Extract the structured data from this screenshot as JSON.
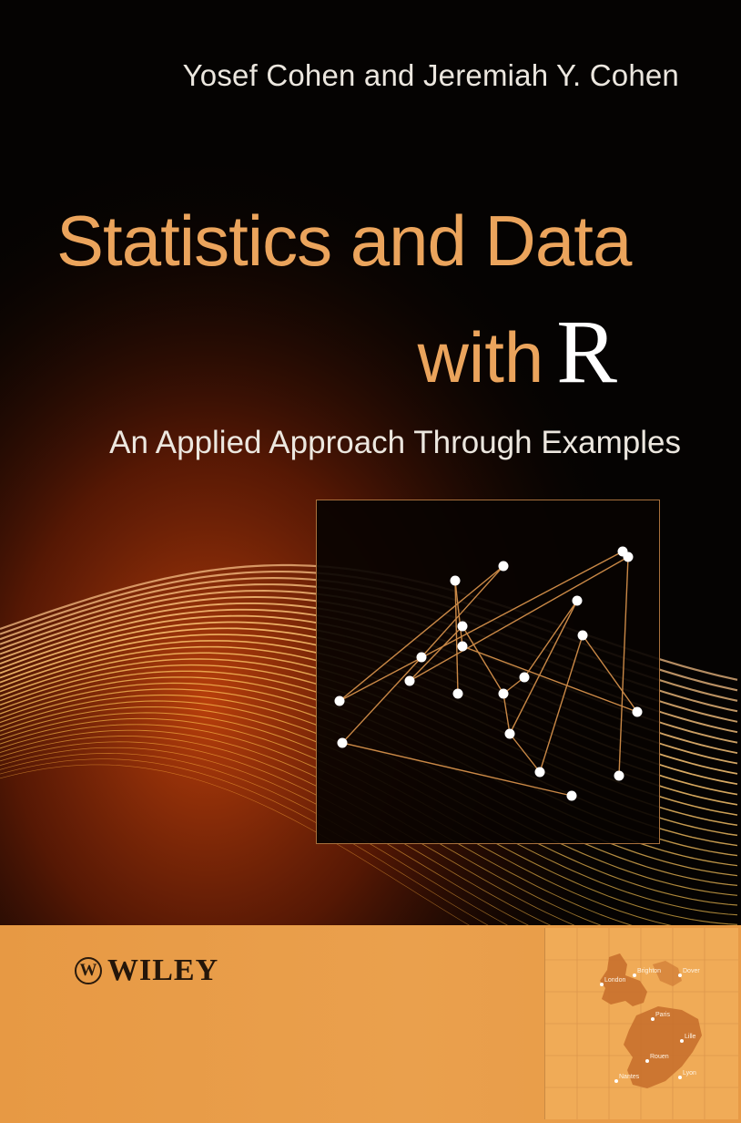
{
  "cover": {
    "authors": "Yosef Cohen and Jeremiah Y. Cohen",
    "title_line1": "Statistics and Data",
    "title_line2_word": "with",
    "title_line2_letter": "R",
    "subtitle": "An Applied Approach Through Examples",
    "publisher_mark": "W",
    "publisher_name": "WILEY"
  },
  "colors": {
    "background": "#050302",
    "title": "#eba45c",
    "title_accent": "#ffffff",
    "wave_orange": "#f08a2c",
    "footer": "#e99c48",
    "plot_frame": "#a8703c"
  },
  "map_labels": [
    "London",
    "Brighton",
    "Dover",
    "Paris",
    "Lille",
    "Rouen",
    "Nantes",
    "Lyon"
  ]
}
